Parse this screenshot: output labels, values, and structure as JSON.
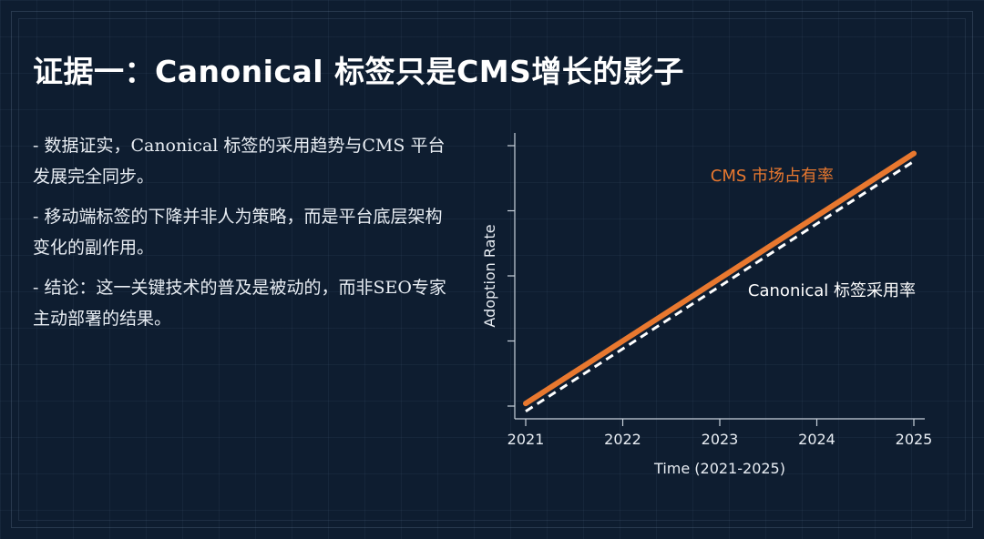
{
  "slide": {
    "title": "证据一：Canonical 标签只是CMS增长的影子",
    "bullets": [
      "- 数据证实，Canonical 标签的采用趋势与CMS 平台发展完全同步。",
      "- 移动端标签的下降并非人为策略，而是平台底层架构变化的副作用。",
      "- 结论：这一关键技术的普及是被动的，而非SEO专家主动部署的结果。"
    ]
  },
  "colors": {
    "background": "#0e1d30",
    "cms_line": "#e8782f",
    "canonical_line": "#ffffff",
    "axis": "#c9d2dc"
  },
  "chart_data": {
    "type": "line",
    "title": "",
    "xlabel": "Time (2021-2025)",
    "ylabel": "Adoption Rate",
    "x": [
      2021,
      2022,
      2023,
      2024,
      2025
    ],
    "xticks": [
      "2021",
      "2022",
      "2023",
      "2024",
      "2025"
    ],
    "yticks_count": 5,
    "ylim": [
      0,
      1
    ],
    "grid": false,
    "series": [
      {
        "name": "CMS 市场占有率",
        "values": [
          0.01,
          0.25,
          0.49,
          0.73,
          0.97
        ],
        "color": "#e8782f",
        "style": "solid"
      },
      {
        "name": "Canonical 标签采用率",
        "values": [
          -0.02,
          0.22,
          0.46,
          0.7,
          0.94
        ],
        "color": "#ffffff",
        "style": "dashed"
      }
    ]
  }
}
